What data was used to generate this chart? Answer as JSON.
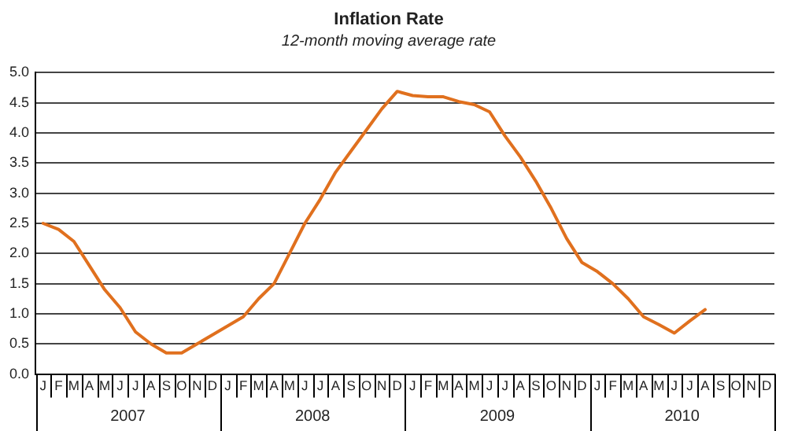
{
  "chart_data": {
    "type": "line",
    "title": "Inflation Rate",
    "subtitle": "12-month moving average rate",
    "categories": [
      "J",
      "F",
      "M",
      "A",
      "M",
      "J",
      "J",
      "A",
      "S",
      "O",
      "N",
      "D",
      "J",
      "F",
      "M",
      "A",
      "M",
      "J",
      "J",
      "A",
      "S",
      "O",
      "N",
      "D",
      "J",
      "F",
      "M",
      "A",
      "M",
      "J",
      "J",
      "A",
      "S",
      "O",
      "N",
      "D",
      "J",
      "F",
      "M",
      "A",
      "M",
      "J",
      "J",
      "A",
      "S",
      "O",
      "N",
      "D"
    ],
    "series": [
      {
        "color": "#e0701e",
        "values": [
          2.5,
          2.4,
          2.2,
          1.8,
          1.4,
          1.1,
          0.7,
          0.5,
          0.35,
          0.35,
          0.5,
          0.65,
          0.8,
          0.95,
          1.25,
          1.5,
          2.0,
          2.5,
          2.9,
          3.35,
          3.7,
          4.05,
          4.4,
          4.69,
          4.62,
          4.6,
          4.6,
          4.52,
          4.47,
          4.35,
          3.95,
          3.6,
          3.2,
          2.75,
          2.25,
          1.85,
          1.7,
          1.5,
          1.25,
          0.95,
          0.82,
          0.68,
          0.88,
          1.07,
          null,
          null,
          null,
          null
        ]
      }
    ],
    "annotations": [
      "2007",
      "2008",
      "2009",
      "2010"
    ],
    "ylim": [
      0,
      5
    ],
    "yticks": [
      {
        "value": 0,
        "label": "0.0"
      },
      {
        "value": 0.5,
        "label": "0.5"
      },
      {
        "value": 1,
        "label": "1.0"
      },
      {
        "value": 1.5,
        "label": "1.5"
      },
      {
        "value": 2,
        "label": "2.0"
      },
      {
        "value": 2.5,
        "label": "2.5"
      },
      {
        "value": 3,
        "label": "3.0"
      },
      {
        "value": 3.5,
        "label": "3.5"
      },
      {
        "value": 4,
        "label": "4.0"
      },
      {
        "value": 4.5,
        "label": "4.5"
      },
      {
        "value": 5,
        "label": "5.0"
      }
    ],
    "grid": "y",
    "legend": false,
    "marker": "none",
    "line_style": "solid"
  }
}
